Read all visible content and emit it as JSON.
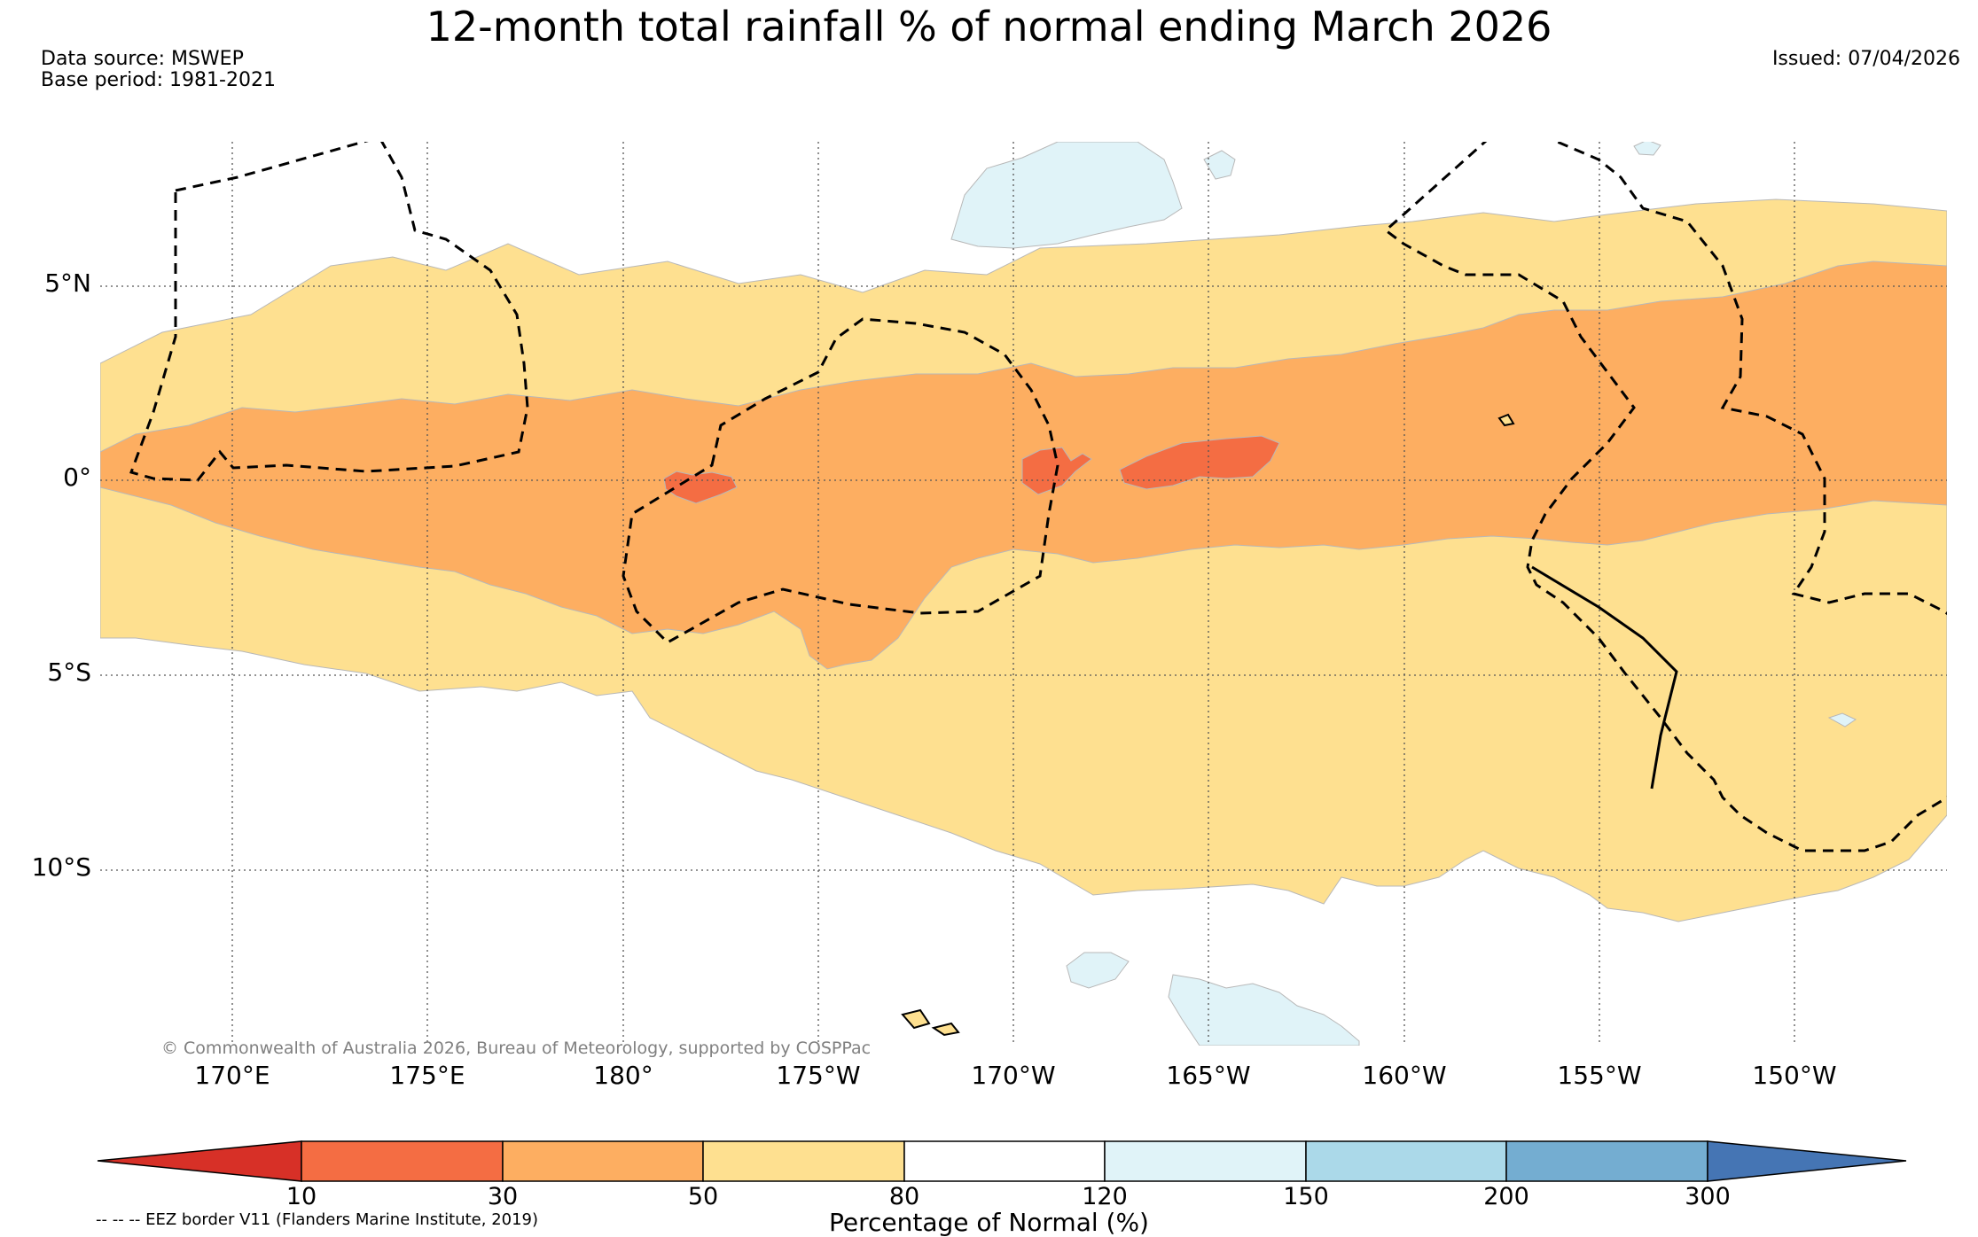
{
  "title": "12-month total rainfall % of normal ending March 2026",
  "data_source": "Data source: MSWEP",
  "base_period": "Base period: 1981-2021",
  "issued": "Issued: 07/04/2026",
  "copyright": "© Commonwealth of Australia 2026, Bureau of Meteorology, supported by COSPPac",
  "map": {
    "lon_range_deg_east": [
      166.7,
      213.9
    ],
    "lat_range": [
      -14.2,
      8.9
    ],
    "lat_ticks": [
      5,
      0,
      -5,
      -10
    ],
    "lat_tick_labels": [
      "5°N",
      "0°",
      "5°S",
      "10°S"
    ],
    "lon_ticks": [
      170,
      175,
      180,
      185,
      190,
      195,
      200,
      205,
      210
    ],
    "lon_tick_labels": [
      "170°E",
      "175°E",
      "180°",
      "175°W",
      "170°W",
      "165°W",
      "160°W",
      "155°W",
      "150°W"
    ],
    "anomaly_bands": [
      {
        "category": "10-30",
        "description": "small core near equator 176-178°W, 171-169°W, 167-164°W"
      },
      {
        "category": "30-50",
        "description": "equatorial tongue ~2°N to ~3.5°S across 167°E-146°W"
      },
      {
        "category": "50-80",
        "description": "broad band ~5°N to ~10°S"
      },
      {
        "category": "120-150",
        "description": "patches north of 6°N near 172-167°W and south of 12°S"
      }
    ]
  },
  "colorbar": {
    "title": "Percentage of Normal (%)",
    "boundaries": [
      10,
      30,
      50,
      80,
      120,
      150,
      200,
      300
    ],
    "labels": [
      "10",
      "30",
      "50",
      "80",
      "120",
      "150",
      "200",
      "300"
    ],
    "colors": [
      "#d73027",
      "#f46d43",
      "#fdae61",
      "#fee090",
      "#ffffff",
      "#e0f3f8",
      "#abd9e9",
      "#74add1",
      "#4575b4"
    ]
  },
  "colors": {
    "c10_30": "#f46d43",
    "c30_50": "#fdae61",
    "c50_80": "#fee090",
    "c120_150": "#e0f3f8"
  },
  "eez_note": "-- -- -- EEZ border V11 (Flanders Marine Institute, 2019)"
}
